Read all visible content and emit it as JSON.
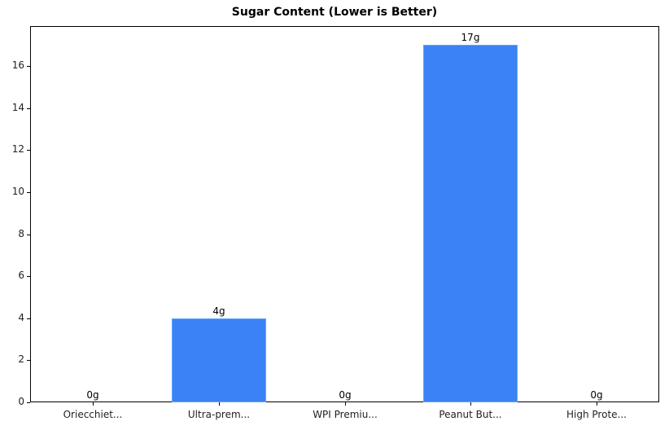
{
  "chart_data": {
    "type": "bar",
    "title": "Sugar Content (Lower is Better)",
    "xlabel": "",
    "ylabel": "",
    "categories": [
      "Oriecchiet...",
      "Ultra-prem...",
      "WPI Premiu...",
      "Peanut But...",
      "High Prote..."
    ],
    "values": [
      0,
      4,
      0,
      17,
      0
    ],
    "value_labels": [
      "0g",
      "4g",
      "0g",
      "17g",
      "0g"
    ],
    "ylim": [
      0,
      17.85
    ],
    "yticks": [
      0,
      2,
      4,
      6,
      8,
      10,
      12,
      14,
      16
    ],
    "grid": false,
    "legend": null,
    "bar_color": "#3b82f6"
  }
}
